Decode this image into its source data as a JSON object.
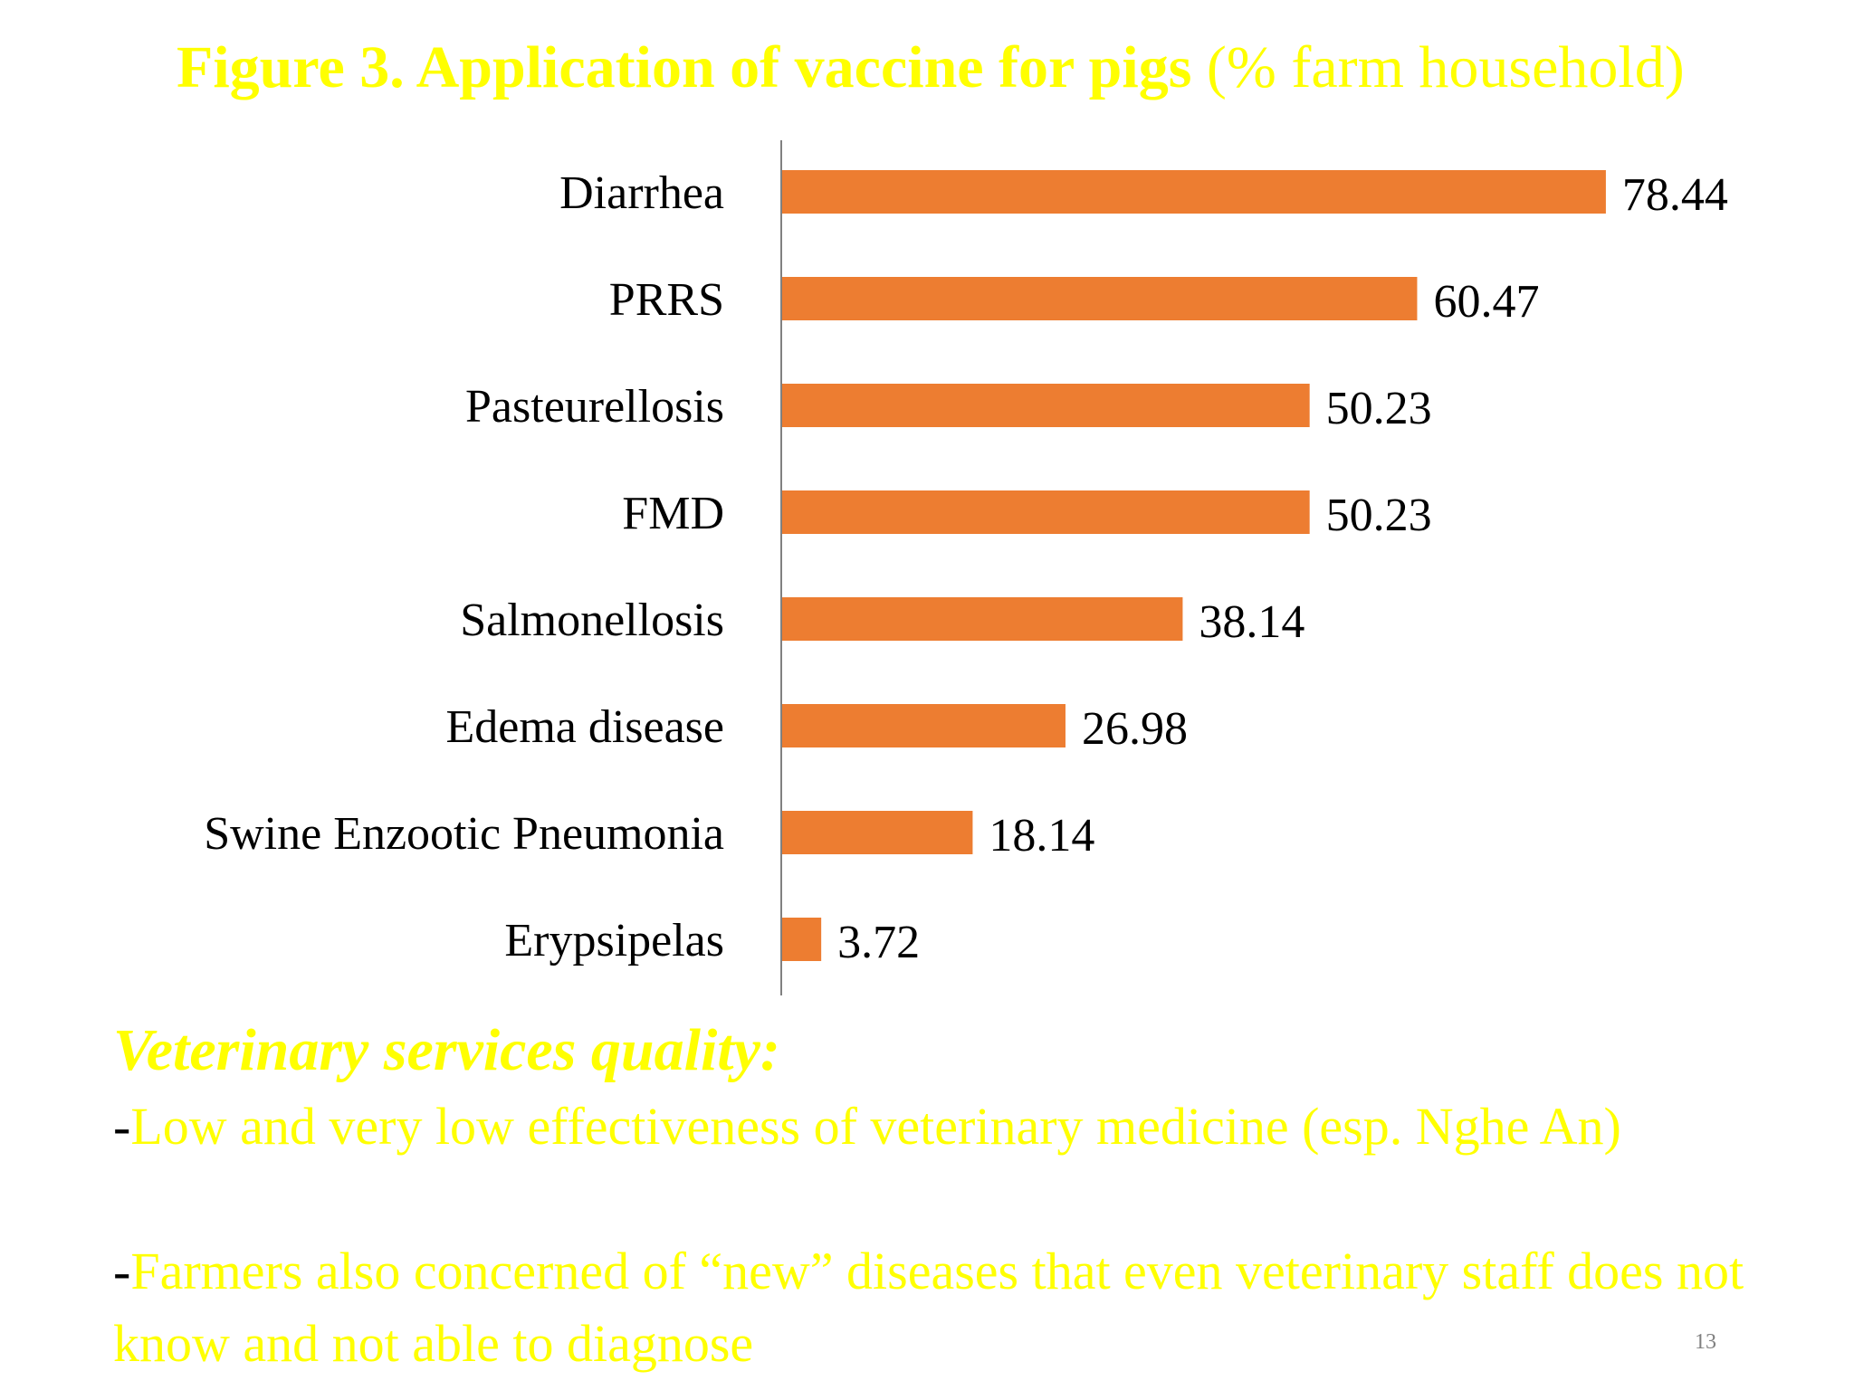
{
  "slide": {
    "title_bold": "Figure 3. Application of vaccine for pigs",
    "title_normal": "(% farm household)",
    "heading": "Veterinary services quality:",
    "bullets": [
      {
        "dash": "-",
        "text": "Low and very low effectiveness of veterinary medicine (esp. Nghe An)"
      },
      {
        "dash": "-",
        "text": "Farmers also concerned of “new” diseases that even veterinary staff does not know and not able to diagnose"
      }
    ],
    "page_number": "13"
  },
  "chart_data": {
    "type": "bar",
    "orientation": "horizontal",
    "categories": [
      "Diarrhea",
      "PRRS",
      "Pasteurellosis",
      "FMD",
      "Salmonellosis",
      "Edema disease",
      "Swine Enzootic Pneumonia",
      "Erypsipelas"
    ],
    "values": [
      78.44,
      60.47,
      50.23,
      50.23,
      38.14,
      26.98,
      18.14,
      3.72
    ],
    "value_labels": [
      "78.44",
      "60.47",
      "50.23",
      "50.23",
      "38.14",
      "26.98",
      "18.14",
      "3.72"
    ],
    "title": "Figure 3. Application of vaccine for pigs (% farm household)",
    "xlabel": "",
    "ylabel": "",
    "xlim": [
      0,
      80
    ],
    "bar_color": "#ed7d31",
    "grid": false,
    "legend": "none"
  },
  "colors": {
    "title": "#ffff00",
    "text_highlight": "#ffff00",
    "bar": "#ed7d31",
    "axis": "#808080"
  }
}
